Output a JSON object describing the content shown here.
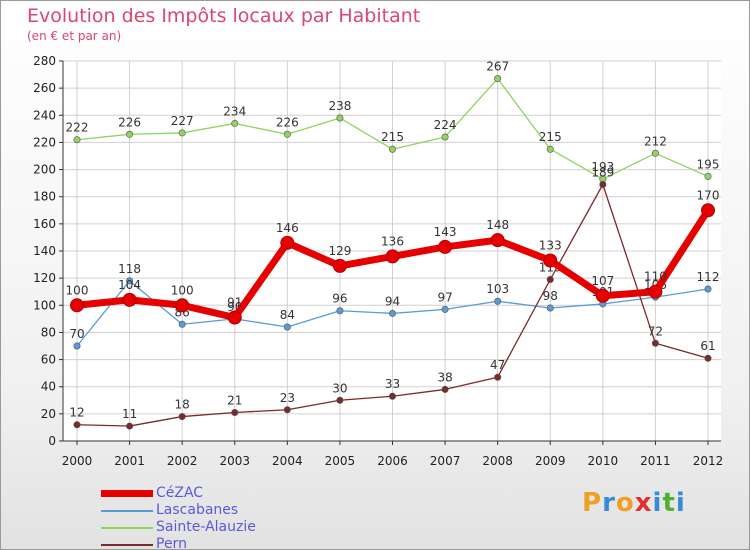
{
  "chart_data": {
    "type": "line",
    "title": "Evolution des Impôts locaux par Habitant",
    "subtitle": "(en € et par an)",
    "categories": [
      "2000",
      "2001",
      "2002",
      "2003",
      "2004",
      "2005",
      "2006",
      "2007",
      "2008",
      "2009",
      "2010",
      "2011",
      "2012"
    ],
    "ylim": [
      0,
      280
    ],
    "yticks": [
      0,
      20,
      40,
      60,
      80,
      100,
      120,
      140,
      160,
      180,
      200,
      220,
      240,
      260,
      280
    ],
    "grid": true,
    "legend_position": "bottom-left",
    "series": [
      {
        "name": "CéZAC",
        "color": "#e60000",
        "values": [
          100,
          104,
          100,
          91,
          146,
          129,
          136,
          143,
          148,
          133,
          107,
          110,
          170
        ]
      },
      {
        "name": "Lascabanes",
        "color": "#5b9bd5",
        "values": [
          70,
          118,
          86,
          90,
          84,
          96,
          94,
          97,
          103,
          98,
          101,
          106,
          112
        ]
      },
      {
        "name": "Sainte-Alauzie",
        "color": "#8fd45e",
        "values": [
          222,
          226,
          227,
          234,
          226,
          238,
          215,
          224,
          267,
          215,
          193,
          212,
          195
        ]
      },
      {
        "name": "Pern",
        "color": "#7a2a2a",
        "values": [
          12,
          11,
          18,
          21,
          23,
          30,
          33,
          38,
          47,
          119,
          189,
          72,
          61
        ]
      }
    ]
  },
  "logo": {
    "letters": [
      "P",
      "r",
      "o",
      "x",
      "i",
      "t",
      "i"
    ],
    "colors": [
      "#f0a020",
      "#3a8ad8",
      "#f0a020",
      "#e03030",
      "#3a8ad8",
      "#50b030",
      "#3a8ad8"
    ]
  }
}
